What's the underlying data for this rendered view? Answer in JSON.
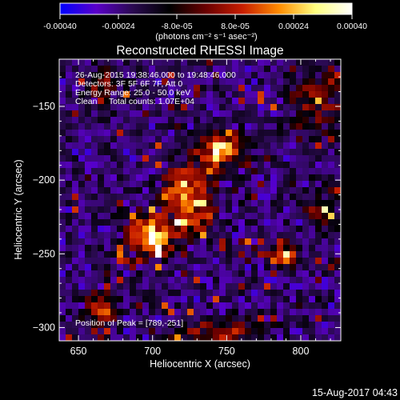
{
  "colorbar": {
    "ticks": [
      "-0.00040",
      "-0.00024",
      "-8.0e-05",
      "8.0e-05",
      "0.00024",
      "0.00040"
    ],
    "unit_label": "(photons cm⁻² s⁻¹ asec⁻²)",
    "range": [
      -0.0004,
      0.0004
    ],
    "colors": [
      "#0000ff",
      "#5a00c8",
      "#2a0a50",
      "#000000",
      "#6a0000",
      "#c81e00",
      "#ff8c00",
      "#ffff80",
      "#ffffff"
    ]
  },
  "chart_data": {
    "type": "heatmap",
    "title": "Reconstructed RHESSI Image",
    "xlabel": "Heliocentric X (arcsec)",
    "ylabel": "Heliocentric Y (arcsec)",
    "xlim": [
      637,
      827
    ],
    "ylim": [
      -309,
      -118
    ],
    "xticks": [
      650,
      700,
      750,
      800
    ],
    "yticks": [
      -150,
      -200,
      -250,
      -300
    ],
    "info_lines": [
      "26-Aug-2015 19:38:46.000 to 19:48:46.000",
      "Detectors: 3F 5F 6F 7F, Att 0",
      "Energy Range: 25.0 - 50.0 keV",
      "Clean     Total counts: 1.07E+04"
    ],
    "peak_label": "Position of Peak = [789,-251]",
    "peak": [
      789,
      -251
    ],
    "sources": [
      {
        "x": 745,
        "y": -180,
        "sx": 10,
        "sy": 9,
        "amp": 0.95
      },
      {
        "x": 722,
        "y": -205,
        "sx": 10,
        "sy": 10,
        "amp": 0.8
      },
      {
        "x": 700,
        "y": -237,
        "sx": 12,
        "sy": 10,
        "amp": 0.95
      },
      {
        "x": 730,
        "y": -225,
        "sx": 9,
        "sy": 8,
        "amp": 0.6
      },
      {
        "x": 789,
        "y": -251,
        "sx": 5,
        "sy": 5,
        "amp": 1.0
      },
      {
        "x": 665,
        "y": -287,
        "sx": 7,
        "sy": 7,
        "amp": 0.7
      },
      {
        "x": 745,
        "y": -305,
        "sx": 20,
        "sy": 7,
        "amp": 0.55
      },
      {
        "x": 810,
        "y": -150,
        "sx": 15,
        "sy": 15,
        "amp": 0.4
      },
      {
        "x": 665,
        "y": -135,
        "sx": 8,
        "sy": 8,
        "amp": 0.4
      },
      {
        "x": 815,
        "y": -220,
        "sx": 8,
        "sy": 10,
        "amp": 0.45
      }
    ]
  },
  "timestamp": "15-Aug-2017 04:43"
}
